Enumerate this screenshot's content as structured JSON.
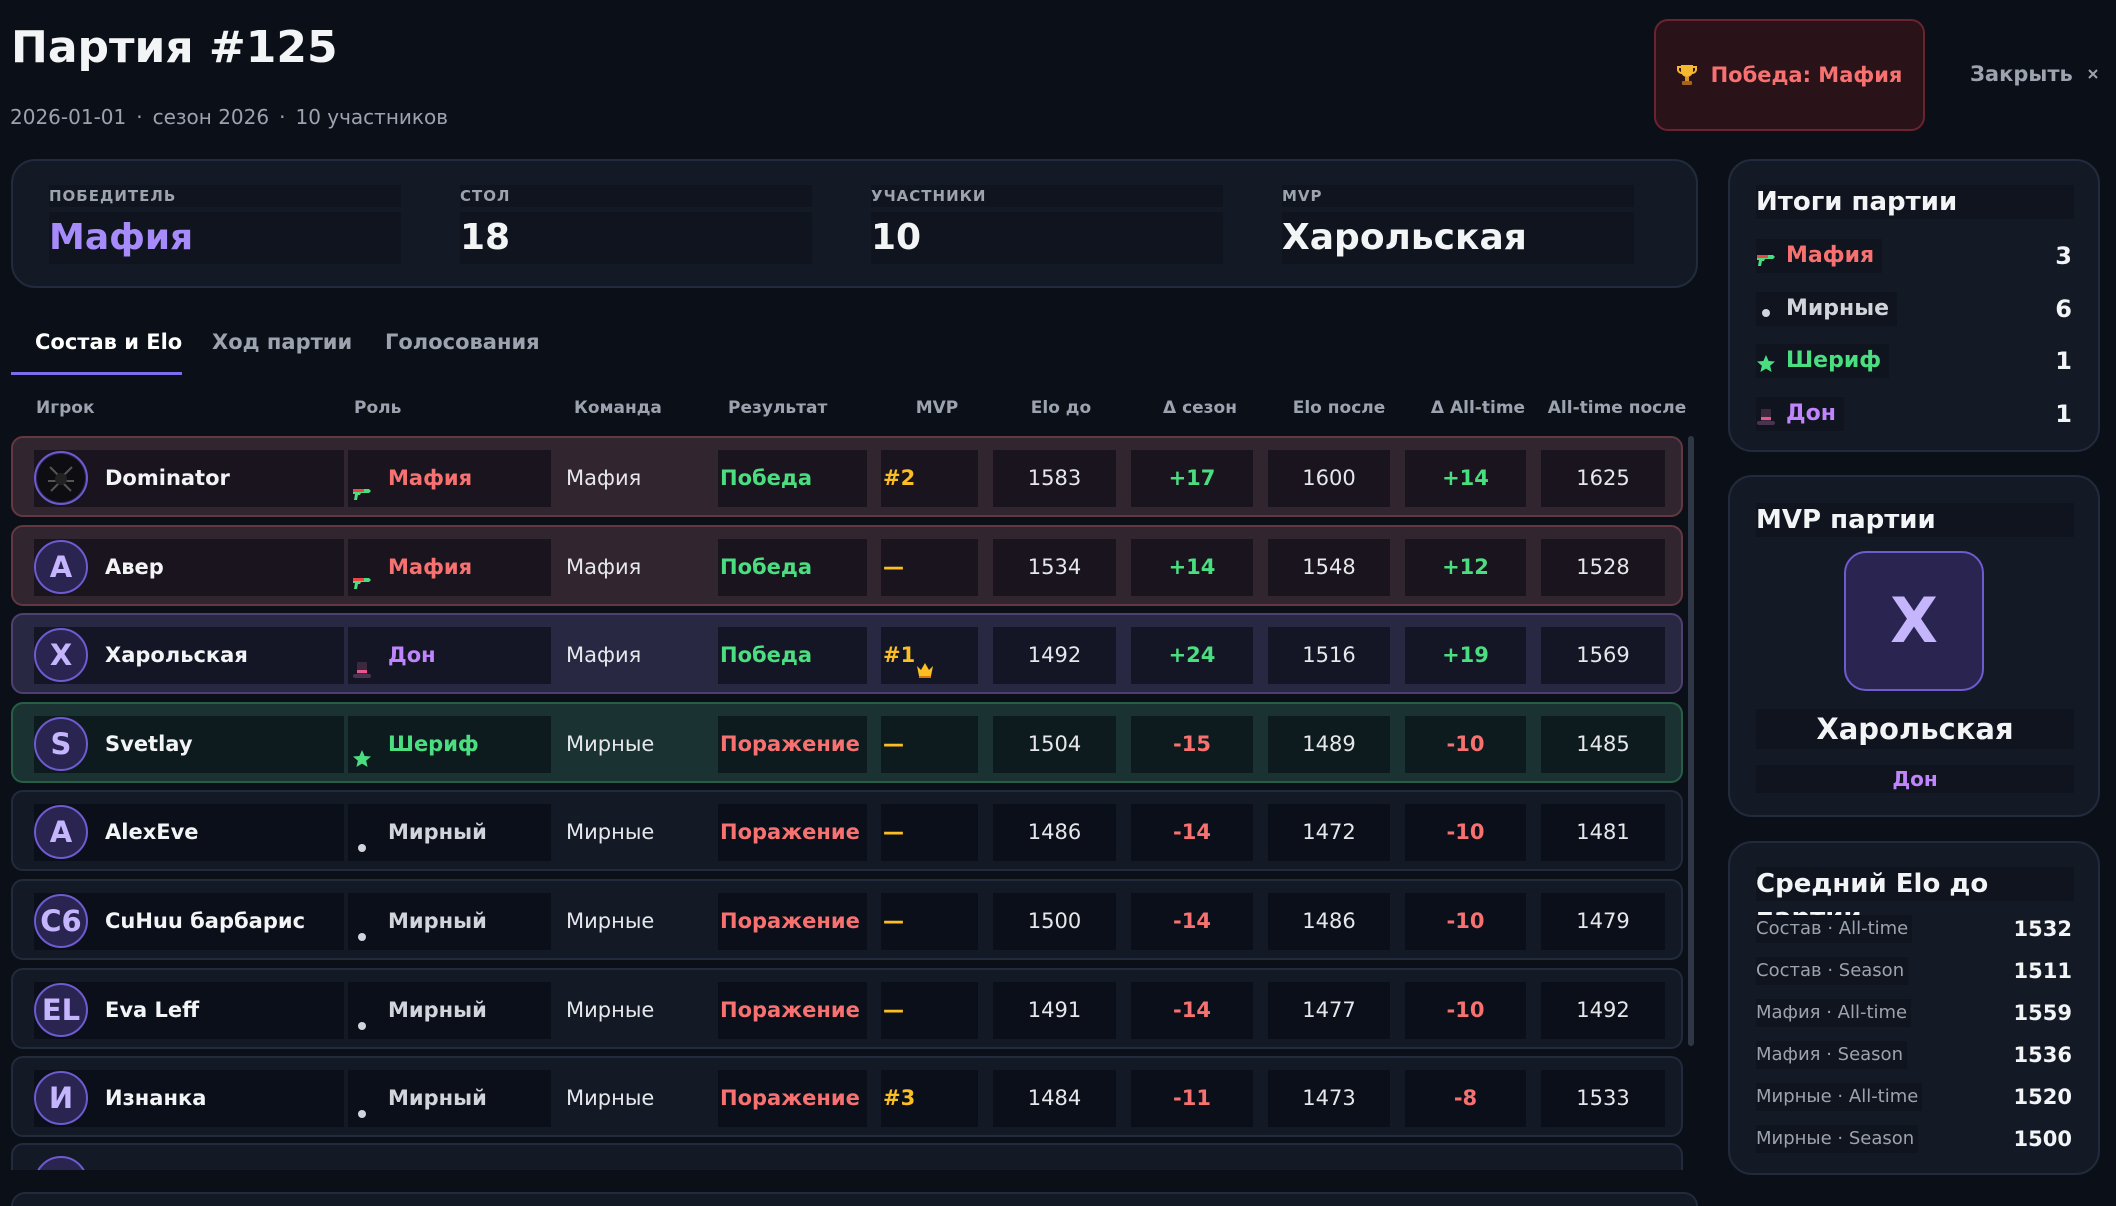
{
  "header": {
    "title": "Партия #125",
    "date": "2026-01-01",
    "season": "сезон 2026",
    "participants": "10 участников",
    "result": "Победа: Мафия",
    "close": "Закрыть"
  },
  "stats": [
    {
      "label": "ПОБЕДИТЕЛЬ",
      "value": "Мафия",
      "color": "#a78bfa"
    },
    {
      "label": "СТОЛ",
      "value": "18",
      "color": "#f3f4f6"
    },
    {
      "label": "УЧАСТНИКИ",
      "value": "10",
      "color": "#f3f4f6"
    },
    {
      "label": "MVP",
      "value": "Харольская",
      "color": "#f3f4f6"
    }
  ],
  "tabs": [
    "Состав и Elo",
    "Ход партии",
    "Голосования"
  ],
  "table": {
    "columns": [
      "Игрок",
      "Роль",
      "Команда",
      "Результат",
      "MVP",
      "Elo до",
      "Δ сезон",
      "Elo после",
      "Δ All-time",
      "All-time после"
    ],
    "rows": [
      {
        "avatar": null,
        "player": "Dominator",
        "role": "Мафия",
        "icon": "gun",
        "color": "#f87171",
        "highlight": true,
        "team": "Мафия",
        "result": "Победа",
        "result_color": "#4ade80",
        "mvp": "#2",
        "elo_before": "1583",
        "d_season": "+17",
        "elo_after": "1600",
        "d_all": "+14",
        "all_after": "1625"
      },
      {
        "avatar": "A",
        "player": "Авер",
        "role": "Мафия",
        "icon": "gun",
        "color": "#f87171",
        "highlight": true,
        "team": "Мафия",
        "result": "Победа",
        "result_color": "#4ade80",
        "mvp": "—",
        "elo_before": "1534",
        "d_season": "+14",
        "elo_after": "1548",
        "d_all": "+12",
        "all_after": "1528"
      },
      {
        "avatar": "X",
        "player": "Харольская",
        "role": "Дон",
        "icon": "hat",
        "color": "#c084fc",
        "highlight": true,
        "team": "Мафия",
        "result": "Победа",
        "result_color": "#4ade80",
        "mvp": "#1",
        "elo_before": "1492",
        "d_season": "+24",
        "elo_after": "1516",
        "d_all": "+19",
        "all_after": "1569"
      },
      {
        "avatar": "S",
        "player": "Svetlay",
        "role": "Шериф",
        "icon": "star",
        "color": "#4ade80",
        "highlight": true,
        "team": "Мирные",
        "result": "Поражение",
        "result_color": "#f87171",
        "mvp": "—",
        "elo_before": "1504",
        "d_season": "-15",
        "elo_after": "1489",
        "d_all": "-10",
        "all_after": "1485"
      },
      {
        "avatar": "A",
        "player": "AlexEve",
        "role": "Мирный",
        "icon": "dot",
        "color": "#d1d5db",
        "highlight": false,
        "team": "Мирные",
        "result": "Поражение",
        "result_color": "#f87171",
        "mvp": "—",
        "elo_before": "1486",
        "d_season": "-14",
        "elo_after": "1472",
        "d_all": "-10",
        "all_after": "1481"
      },
      {
        "avatar": "C6",
        "player": "CuHuu барбарис",
        "role": "Мирный",
        "icon": "dot",
        "color": "#d1d5db",
        "highlight": false,
        "team": "Мирные",
        "result": "Поражение",
        "result_color": "#f87171",
        "mvp": "—",
        "elo_before": "1500",
        "d_season": "-14",
        "elo_after": "1486",
        "d_all": "-10",
        "all_after": "1479"
      },
      {
        "avatar": "EL",
        "player": "Eva Leff",
        "role": "Мирный",
        "icon": "dot",
        "color": "#d1d5db",
        "highlight": false,
        "team": "Мирные",
        "result": "Поражение",
        "result_color": "#f87171",
        "mvp": "—",
        "elo_before": "1491",
        "d_season": "-14",
        "elo_after": "1477",
        "d_all": "-10",
        "all_after": "1492"
      },
      {
        "avatar": "И",
        "player": "Изнанка",
        "role": "Мирный",
        "icon": "dot",
        "color": "#d1d5db",
        "highlight": false,
        "team": "Мирные",
        "result": "Поражение",
        "result_color": "#f87171",
        "mvp": "#3",
        "elo_before": "1484",
        "d_season": "-11",
        "elo_after": "1473",
        "d_all": "-8",
        "all_after": "1533"
      }
    ]
  },
  "summary": {
    "title": "Итоги партии",
    "items": [
      {
        "name": "Мафия",
        "icon": "gun",
        "color": "#f87171",
        "value": "3"
      },
      {
        "name": "Мирные",
        "icon": "dot",
        "color": "#d1d5db",
        "value": "6"
      },
      {
        "name": "Шериф",
        "icon": "star",
        "color": "#4ade80",
        "value": "1"
      },
      {
        "name": "Дон",
        "icon": "hat",
        "color": "#c084fc",
        "value": "1"
      }
    ]
  },
  "mvp": {
    "title": "MVP партии",
    "avatar": "X",
    "name": "Харольская",
    "role": "Дон"
  },
  "avg_elo": {
    "title": "Средний Elo до партии",
    "items": [
      {
        "label": "Состав · All-time",
        "value": "1532"
      },
      {
        "label": "Состав · Season",
        "value": "1511"
      },
      {
        "label": "Мафия · All-time",
        "value": "1559"
      },
      {
        "label": "Мафия · Season",
        "value": "1536"
      },
      {
        "label": "Мирные · All-time",
        "value": "1520"
      },
      {
        "label": "Мирные · Season",
        "value": "1500"
      }
    ]
  }
}
